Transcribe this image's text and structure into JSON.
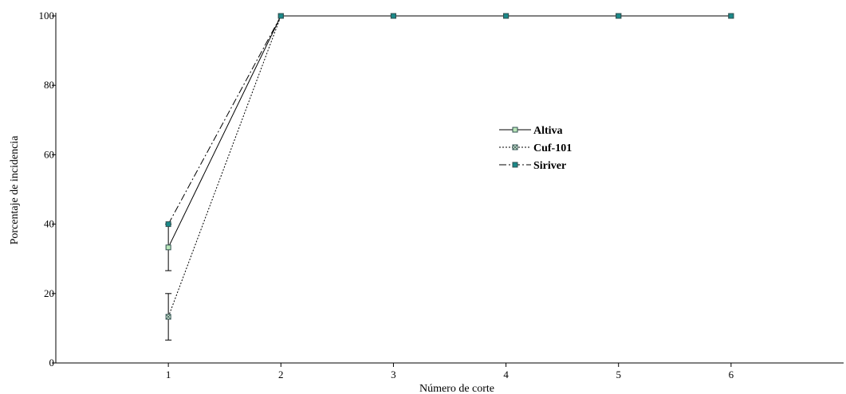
{
  "chart_data": {
    "type": "line",
    "title": "",
    "xlabel": "Número de corte",
    "ylabel": "Porcentaje de incidencia",
    "xlim": [
      0,
      7
    ],
    "ylim": [
      0,
      100
    ],
    "x": [
      1,
      2,
      3,
      4,
      5,
      6
    ],
    "xticks": [
      "1",
      "2",
      "3",
      "4",
      "5",
      "6"
    ],
    "yticks": [
      "0",
      "20",
      "40",
      "60",
      "80",
      "100"
    ],
    "grid": false,
    "legend_position": "right-center",
    "series": [
      {
        "name": "Altiva",
        "line_style": "solid",
        "marker": "square-light-green",
        "values": [
          33.3,
          100,
          100,
          100,
          100,
          100
        ],
        "error": [
          6.7,
          0,
          0,
          0,
          0,
          0
        ]
      },
      {
        "name": "Cuf-101",
        "line_style": "dotted",
        "marker": "square-crossed",
        "values": [
          13.3,
          100,
          100,
          100,
          100,
          100
        ],
        "error": [
          6.7,
          0,
          0,
          0,
          0,
          0
        ]
      },
      {
        "name": "Siriver",
        "line_style": "dash-dot",
        "marker": "square-teal",
        "values": [
          40,
          100,
          100,
          100,
          100,
          100
        ],
        "error": [
          0,
          0,
          0,
          0,
          0,
          0
        ]
      }
    ],
    "colors": {
      "altiva_fill": "#b8e6b8",
      "cuf_fill": "#d9f0d9",
      "siriver_fill": "#1a8a8a",
      "marker_stroke": "#2f4f4f",
      "axis": "#000000"
    }
  }
}
